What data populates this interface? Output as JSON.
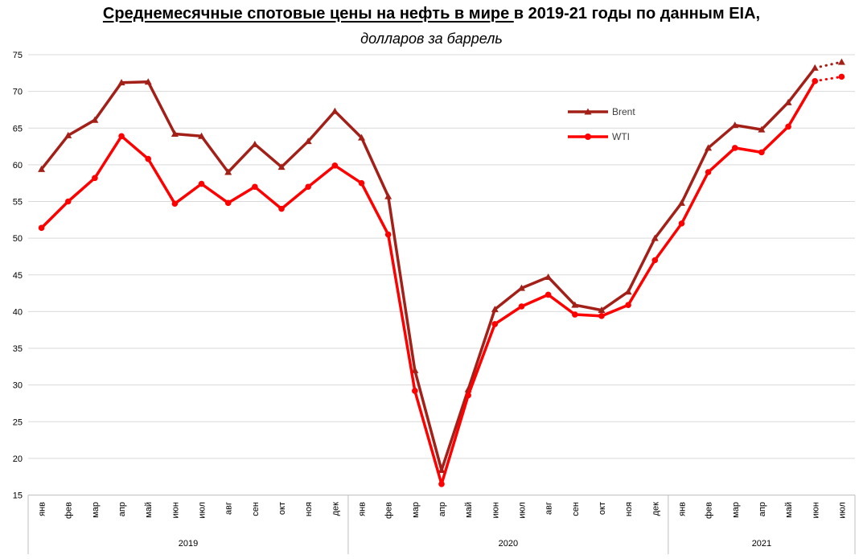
{
  "title": {
    "underlined_part": "Среднемесячные спотовые цены на нефть в мире ",
    "rest_part": "в 2019-21 годы по данным EIA,",
    "subtitle": "долларов за баррель"
  },
  "colors": {
    "brent": "#A32019",
    "wti": "#FF0000",
    "gridline": "#D9D9D9",
    "axis": "#BFBFBF",
    "text": "#000000",
    "legend_text": "#3F3F3F"
  },
  "chart_data": {
    "type": "line",
    "title": "Среднемесячные спотовые цены на нефть в мире в 2019-21 годы по данным EIA,",
    "subtitle": "долларов за баррель",
    "ylabel": "",
    "xlabel": "",
    "ylim": [
      15,
      75
    ],
    "ytick_step": 5,
    "yticks": [
      15,
      20,
      25,
      30,
      35,
      40,
      45,
      50,
      55,
      60,
      65,
      70,
      75
    ],
    "grid": "horizontal",
    "legend_position": "inside-top-right",
    "categories": [
      "янв",
      "фев",
      "мар",
      "апр",
      "май",
      "июн",
      "июл",
      "авг",
      "сен",
      "окт",
      "ноя",
      "дек",
      "янв",
      "фев",
      "мар",
      "апр",
      "май",
      "июн",
      "июл",
      "авг",
      "сен",
      "окт",
      "ноя",
      "дек",
      "янв",
      "фев",
      "мар",
      "апр",
      "май",
      "июн",
      "июл"
    ],
    "year_groups": [
      {
        "label": "2019",
        "count": 12
      },
      {
        "label": "2020",
        "count": 12
      },
      {
        "label": "2021",
        "count": 7
      }
    ],
    "series": [
      {
        "name": "Brent",
        "color": "#A32019",
        "marker": "triangle",
        "dotted_last_segment": true,
        "values": [
          59.4,
          64.0,
          66.1,
          71.2,
          71.3,
          64.2,
          63.9,
          59.0,
          62.8,
          59.7,
          63.2,
          67.3,
          63.7,
          55.7,
          32.0,
          18.4,
          29.4,
          40.3,
          43.2,
          44.7,
          40.9,
          40.2,
          42.7,
          50.0,
          54.8,
          62.3,
          65.4,
          64.8,
          68.5,
          73.2,
          74.0
        ]
      },
      {
        "name": "WTI",
        "color": "#FF0000",
        "marker": "circle",
        "dotted_last_segment": true,
        "values": [
          51.4,
          55.0,
          58.2,
          63.9,
          60.8,
          54.7,
          57.4,
          54.8,
          57.0,
          54.0,
          57.0,
          59.9,
          57.5,
          50.5,
          29.2,
          16.5,
          28.6,
          38.3,
          40.7,
          42.3,
          39.6,
          39.4,
          40.9,
          47.0,
          52.0,
          59.0,
          62.3,
          61.7,
          65.2,
          71.4,
          72.0
        ]
      }
    ]
  }
}
